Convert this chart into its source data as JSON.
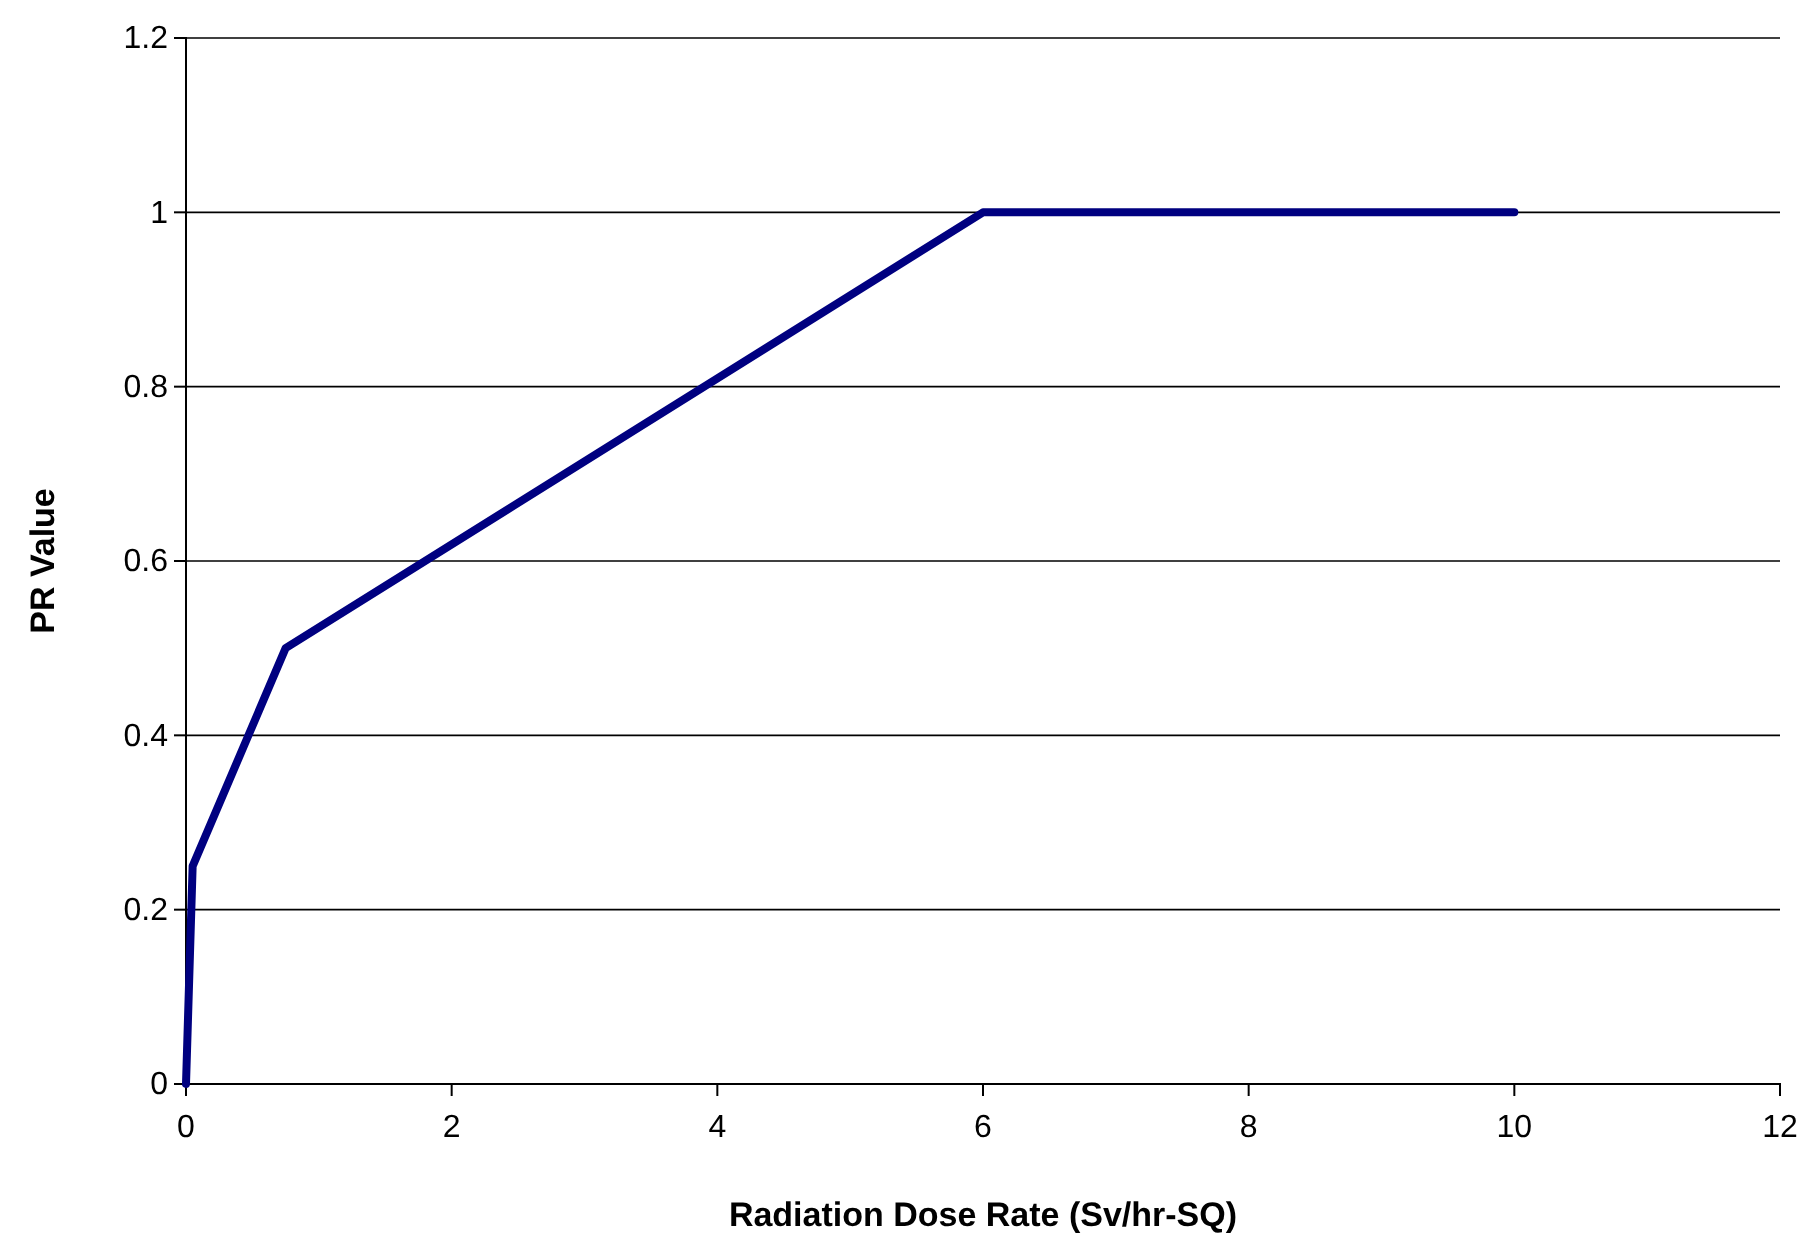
{
  "chart_data": {
    "type": "line",
    "xlabel": "Radiation Dose Rate (Sv/hr-SQ)",
    "ylabel": "PR Value",
    "x": [
      0,
      0.05,
      0.75,
      6,
      7,
      8,
      9,
      10
    ],
    "series": [
      {
        "color": "#000080",
        "values": [
          0,
          0.25,
          0.5,
          1,
          1,
          1,
          1,
          1
        ]
      }
    ],
    "xlim": [
      0,
      12
    ],
    "xticks": [
      0,
      2,
      4,
      6,
      8,
      10,
      12
    ],
    "ylim": [
      0,
      1.2
    ],
    "yticks": [
      0,
      0.2,
      0.4,
      0.6,
      0.8,
      1,
      1.2
    ],
    "grid": "y",
    "marker": "none",
    "line_style": "solid"
  }
}
